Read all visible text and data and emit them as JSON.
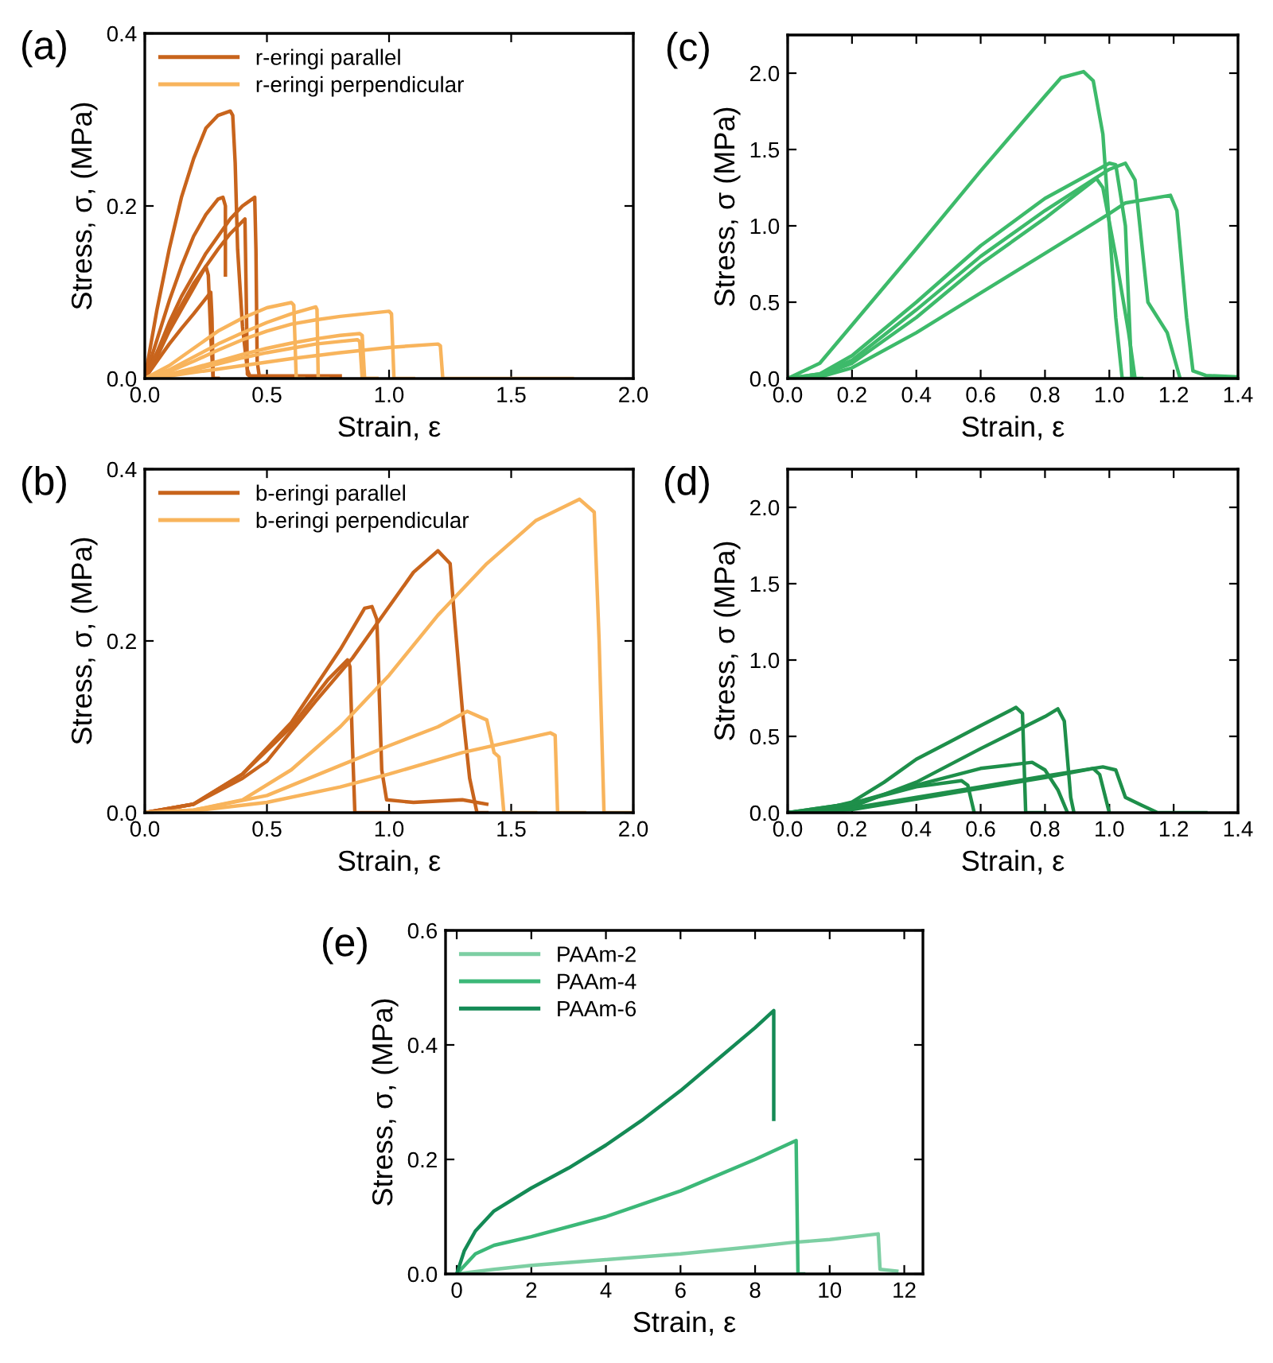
{
  "chart_data": [
    {
      "type": "line",
      "title": "(a)",
      "xlabel": "Strain, ε",
      "ylabel": "Stress, σ, (MPa)",
      "xlim": [
        0,
        2
      ],
      "ylim": [
        0,
        0.4
      ],
      "xticks": [
        {
          "value": 0,
          "label": "0.0"
        },
        0.5,
        {
          "value": 1,
          "label": "1.0"
        },
        1.5,
        {
          "value": 2,
          "label": "2.0"
        }
      ],
      "yticks": [
        {
          "value": 0,
          "label": "0.0"
        },
        0.2,
        0.4
      ],
      "grid": false,
      "legend": "top left",
      "series": [
        {
          "name": "r-eringi parallel",
          "color": "#c8641c",
          "x": [
            0,
            0.05,
            0.1,
            0.15,
            0.2,
            0.25,
            0.3,
            0.35,
            0.36,
            0.37,
            0.38,
            0.4,
            0.42,
            0.43,
            0.6,
            0.8
          ],
          "values": [
            0,
            0.08,
            0.15,
            0.21,
            0.255,
            0.29,
            0.305,
            0.31,
            0.305,
            0.25,
            0.15,
            0.06,
            0.01,
            0.003,
            0.003,
            0.003
          ]
        },
        {
          "color": "#c8641c",
          "x": [
            0,
            0.05,
            0.1,
            0.15,
            0.2,
            0.25,
            0.3,
            0.32,
            0.33,
            0.33
          ],
          "values": [
            0,
            0.045,
            0.09,
            0.13,
            0.165,
            0.19,
            0.208,
            0.21,
            0.2,
            0.12
          ]
        },
        {
          "color": "#c8641c",
          "x": [
            0,
            0.05,
            0.1,
            0.15,
            0.2,
            0.25,
            0.3,
            0.35,
            0.4,
            0.45,
            0.455,
            0.46,
            0.47,
            0.55
          ],
          "values": [
            0,
            0.03,
            0.065,
            0.095,
            0.12,
            0.145,
            0.165,
            0.185,
            0.2,
            0.21,
            0.15,
            0.02,
            0,
            0
          ]
        },
        {
          "color": "#c8641c",
          "x": [
            0,
            0.05,
            0.1,
            0.15,
            0.2,
            0.25,
            0.3,
            0.35,
            0.41,
            0.415,
            0.42,
            0.44
          ],
          "values": [
            0,
            0.025,
            0.055,
            0.08,
            0.105,
            0.13,
            0.15,
            0.168,
            0.185,
            0.1,
            0.005,
            0
          ]
        },
        {
          "color": "#c8641c",
          "x": [
            0,
            0.05,
            0.1,
            0.15,
            0.2,
            0.25,
            0.26,
            0.27,
            0.28,
            0.3
          ],
          "values": [
            0,
            0.03,
            0.06,
            0.085,
            0.11,
            0.13,
            0.12,
            0.05,
            0,
            0
          ]
        },
        {
          "color": "#c8641c",
          "x": [
            0,
            0.05,
            0.1,
            0.15,
            0.2,
            0.27,
            0.275,
            0.28,
            0.3
          ],
          "values": [
            0,
            0.02,
            0.04,
            0.058,
            0.075,
            0.1,
            0.07,
            0,
            0
          ]
        },
        {
          "name": "r-eringi perpendicular",
          "color": "#f8b45c",
          "x": [
            0,
            0.1,
            0.2,
            0.3,
            0.4,
            0.5,
            0.6,
            0.61,
            0.62,
            0.65
          ],
          "values": [
            0,
            0.015,
            0.035,
            0.055,
            0.07,
            0.082,
            0.088,
            0.085,
            0,
            0
          ]
        },
        {
          "color": "#f8b45c",
          "x": [
            0,
            0.1,
            0.2,
            0.3,
            0.4,
            0.5,
            0.6,
            0.7,
            0.705,
            0.71,
            0.75
          ],
          "values": [
            0,
            0.01,
            0.025,
            0.04,
            0.053,
            0.065,
            0.075,
            0.083,
            0.08,
            0,
            0
          ]
        },
        {
          "color": "#f8b45c",
          "x": [
            0,
            0.1,
            0.2,
            0.3,
            0.4,
            0.5,
            0.6,
            0.7,
            0.8,
            0.9,
            1.0,
            1.01,
            1.02,
            1.1
          ],
          "values": [
            0,
            0.008,
            0.02,
            0.033,
            0.045,
            0.055,
            0.063,
            0.068,
            0.072,
            0.075,
            0.078,
            0.075,
            0,
            0
          ]
        },
        {
          "color": "#f8b45c",
          "x": [
            0,
            0.1,
            0.2,
            0.3,
            0.4,
            0.5,
            0.6,
            0.7,
            0.8,
            0.88,
            0.89,
            0.9,
            0.95
          ],
          "values": [
            0,
            0.005,
            0.012,
            0.02,
            0.028,
            0.035,
            0.041,
            0.046,
            0.05,
            0.052,
            0.05,
            0,
            0
          ]
        },
        {
          "color": "#f8b45c",
          "x": [
            0,
            0.1,
            0.2,
            0.3,
            0.4,
            0.5,
            0.6,
            0.7,
            0.8,
            0.87,
            0.88,
            0.89,
            0.95
          ],
          "values": [
            0,
            0.004,
            0.01,
            0.017,
            0.024,
            0.03,
            0.035,
            0.04,
            0.043,
            0.045,
            0.043,
            0,
            0
          ]
        },
        {
          "color": "#f8b45c",
          "x": [
            0,
            0.1,
            0.2,
            0.4,
            0.6,
            0.8,
            1.0,
            1.2,
            1.21,
            1.22,
            1.4,
            1.75
          ],
          "values": [
            0,
            0.003,
            0.007,
            0.015,
            0.023,
            0.03,
            0.036,
            0.04,
            0.038,
            0,
            0,
            0
          ]
        }
      ]
    },
    {
      "type": "line",
      "title": "(b)",
      "xlabel": "Strain, ε",
      "ylabel": "Stress, σ, (MPa)",
      "xlim": [
        0,
        2
      ],
      "ylim": [
        0,
        0.4
      ],
      "xticks": [
        {
          "value": 0,
          "label": "0.0"
        },
        0.5,
        {
          "value": 1,
          "label": "1.0"
        },
        1.5,
        {
          "value": 2,
          "label": "2.0"
        }
      ],
      "yticks": [
        {
          "value": 0,
          "label": "0.0"
        },
        0.2,
        0.4
      ],
      "grid": false,
      "legend": "top left",
      "series": [
        {
          "name": "b-eringi parallel",
          "color": "#c8641c",
          "x": [
            0,
            0.2,
            0.4,
            0.6,
            0.75,
            0.83,
            0.84,
            0.85,
            0.86,
            1.0
          ],
          "values": [
            0,
            0.01,
            0.045,
            0.1,
            0.155,
            0.178,
            0.17,
            0.08,
            0,
            0
          ]
        },
        {
          "color": "#c8641c",
          "x": [
            0,
            0.2,
            0.4,
            0.6,
            0.8,
            0.9,
            0.93,
            0.95,
            0.97,
            0.99,
            1.1,
            1.3,
            1.4
          ],
          "values": [
            0,
            0.01,
            0.045,
            0.105,
            0.19,
            0.238,
            0.24,
            0.225,
            0.05,
            0.015,
            0.012,
            0.015,
            0.01
          ]
        },
        {
          "color": "#c8641c",
          "x": [
            0,
            0.2,
            0.4,
            0.5,
            0.7,
            0.85,
            1.0,
            1.1,
            1.2,
            1.25,
            1.27,
            1.3,
            1.33,
            1.36,
            1.4
          ],
          "values": [
            0,
            0.01,
            0.04,
            0.06,
            0.13,
            0.18,
            0.24,
            0.28,
            0.305,
            0.29,
            0.22,
            0.12,
            0.04,
            0,
            0
          ]
        },
        {
          "name": "b-eringi perpendicular",
          "color": "#f8b45c",
          "x": [
            0,
            0.2,
            0.4,
            0.6,
            0.8,
            1.0,
            1.2,
            1.4,
            1.6,
            1.78,
            1.84,
            1.86,
            1.88,
            2.0
          ],
          "values": [
            0,
            0.003,
            0.015,
            0.05,
            0.1,
            0.16,
            0.23,
            0.29,
            0.34,
            0.365,
            0.35,
            0.2,
            0,
            0
          ]
        },
        {
          "color": "#f8b45c",
          "x": [
            0,
            0.2,
            0.5,
            0.8,
            1.0,
            1.2,
            1.32,
            1.4,
            1.43,
            1.45,
            1.47,
            1.6
          ],
          "values": [
            0,
            0.003,
            0.02,
            0.055,
            0.078,
            0.1,
            0.118,
            0.108,
            0.07,
            0.065,
            0,
            0
          ]
        },
        {
          "color": "#f8b45c",
          "x": [
            0,
            0.2,
            0.5,
            0.8,
            1.0,
            1.3,
            1.66,
            1.68,
            1.69,
            1.8
          ],
          "values": [
            0,
            0.002,
            0.012,
            0.03,
            0.045,
            0.07,
            0.093,
            0.09,
            0,
            0
          ]
        }
      ]
    },
    {
      "type": "line",
      "title": "(c)",
      "xlabel": "Strain, ε",
      "ylabel": "Stress, σ (MPa)",
      "xlim": [
        0,
        1.4
      ],
      "ylim": [
        0,
        2.25
      ],
      "xticks": [
        {
          "value": 0,
          "label": "0.0"
        },
        0.2,
        0.4,
        0.6,
        0.8,
        {
          "value": 1,
          "label": "1.0"
        },
        1.2,
        1.4
      ],
      "yticks": [
        {
          "value": 0,
          "label": "0.0"
        },
        0.5,
        {
          "value": 1,
          "label": "1.0"
        },
        1.5,
        {
          "value": 2,
          "label": "2.0"
        }
      ],
      "grid": false,
      "series": [
        {
          "color": "#3dba6a",
          "x": [
            0,
            0.1,
            0.2,
            0.4,
            0.6,
            0.8,
            0.85,
            0.92,
            0.95,
            0.98,
            1.0,
            1.02,
            1.04,
            1.1
          ],
          "values": [
            0,
            0.1,
            0.35,
            0.85,
            1.36,
            1.85,
            1.97,
            2.01,
            1.95,
            1.6,
            1.0,
            0.4,
            0,
            0
          ]
        },
        {
          "color": "#3dba6a",
          "x": [
            0,
            0.1,
            0.2,
            0.4,
            0.6,
            0.8,
            1.0,
            1.02,
            1.05,
            1.07
          ],
          "values": [
            0,
            0.03,
            0.15,
            0.5,
            0.87,
            1.18,
            1.41,
            1.4,
            1.0,
            0
          ]
        },
        {
          "color": "#3dba6a",
          "x": [
            0,
            0.1,
            0.2,
            0.4,
            0.6,
            0.8,
            1.0,
            1.05,
            1.08,
            1.1,
            1.12,
            1.18,
            1.22
          ],
          "values": [
            0,
            0.03,
            0.12,
            0.45,
            0.8,
            1.1,
            1.37,
            1.41,
            1.3,
            0.9,
            0.5,
            0.3,
            0
          ]
        },
        {
          "color": "#3dba6a",
          "x": [
            0,
            0.1,
            0.2,
            0.4,
            0.6,
            0.8,
            0.96,
            0.98,
            1.02,
            1.06,
            1.08
          ],
          "values": [
            0,
            0.02,
            0.1,
            0.4,
            0.75,
            1.05,
            1.31,
            1.25,
            0.8,
            0.3,
            0
          ]
        },
        {
          "color": "#3dba6a",
          "x": [
            0,
            0.1,
            0.2,
            0.4,
            0.6,
            0.8,
            1.0,
            1.05,
            1.19,
            1.21,
            1.24,
            1.26,
            1.3,
            1.4
          ],
          "values": [
            0,
            0.01,
            0.07,
            0.3,
            0.56,
            0.82,
            1.08,
            1.15,
            1.2,
            1.1,
            0.4,
            0.05,
            0.02,
            0.01
          ]
        }
      ]
    },
    {
      "type": "line",
      "title": "(d)",
      "xlabel": "Strain, ε",
      "ylabel": "Stress, σ (MPa)",
      "xlim": [
        0,
        1.4
      ],
      "ylim": [
        0,
        2.25
      ],
      "xticks": [
        {
          "value": 0,
          "label": "0.0"
        },
        0.2,
        0.4,
        0.6,
        0.8,
        {
          "value": 1,
          "label": "1.0"
        },
        1.2,
        1.4
      ],
      "yticks": [
        {
          "value": 0,
          "label": "0.0"
        },
        0.5,
        {
          "value": 1,
          "label": "1.0"
        },
        1.5,
        {
          "value": 2,
          "label": "2.0"
        }
      ],
      "grid": false,
      "series": [
        {
          "color": "#1e8f4a",
          "x": [
            0,
            0.1,
            0.2,
            0.3,
            0.4,
            0.5,
            0.6,
            0.71,
            0.73,
            0.74,
            0.8
          ],
          "values": [
            0,
            0.02,
            0.07,
            0.2,
            0.35,
            0.46,
            0.57,
            0.69,
            0.65,
            0,
            0
          ]
        },
        {
          "color": "#1e8f4a",
          "x": [
            0,
            0.2,
            0.4,
            0.6,
            0.8,
            0.84,
            0.86,
            0.88,
            0.89
          ],
          "values": [
            0,
            0.04,
            0.2,
            0.42,
            0.63,
            0.68,
            0.6,
            0.1,
            0
          ]
        },
        {
          "color": "#1e8f4a",
          "x": [
            0,
            0.2,
            0.4,
            0.6,
            0.76,
            0.8,
            0.84,
            0.87
          ],
          "values": [
            0,
            0.06,
            0.18,
            0.29,
            0.33,
            0.28,
            0.15,
            0
          ]
        },
        {
          "color": "#1e8f4a",
          "x": [
            0,
            0.2,
            0.4,
            0.54,
            0.56,
            0.58
          ],
          "values": [
            0,
            0.06,
            0.17,
            0.21,
            0.18,
            0
          ]
        },
        {
          "color": "#1e8f4a",
          "x": [
            0,
            0.2,
            0.4,
            0.6,
            0.8,
            0.98,
            1.02,
            1.05,
            1.1,
            1.15,
            1.3
          ],
          "values": [
            0,
            0.03,
            0.1,
            0.17,
            0.24,
            0.3,
            0.28,
            0.1,
            0.05,
            0,
            0
          ]
        },
        {
          "color": "#1e8f4a",
          "x": [
            0,
            0.2,
            0.4,
            0.6,
            0.8,
            0.95,
            0.97,
            1.0
          ],
          "values": [
            0,
            0.02,
            0.09,
            0.16,
            0.23,
            0.29,
            0.25,
            0
          ]
        }
      ]
    },
    {
      "type": "line",
      "title": "(e)",
      "xlabel": "Strain, ε",
      "ylabel": "Stress, σ, (MPa)",
      "xlim": [
        -0.3,
        12.5
      ],
      "ylim": [
        0,
        0.6
      ],
      "xticks": [
        0,
        2,
        4,
        6,
        8,
        10,
        12
      ],
      "yticks": [
        {
          "value": 0,
          "label": "0.0"
        },
        0.2,
        0.4,
        0.6
      ],
      "grid": false,
      "legend": "top left",
      "series": [
        {
          "name": "PAAm-2",
          "color": "#7dcfa3",
          "x": [
            0,
            1,
            2,
            4,
            6,
            8,
            9,
            10,
            11.3,
            11.35,
            11.8
          ],
          "values": [
            0,
            0.008,
            0.015,
            0.025,
            0.035,
            0.048,
            0.055,
            0.06,
            0.07,
            0.008,
            0.005
          ]
        },
        {
          "name": "PAAm-4",
          "color": "#3cb878",
          "x": [
            0,
            0.5,
            1,
            2,
            4,
            6,
            8,
            9.1,
            9.15,
            9.3
          ],
          "values": [
            0,
            0.035,
            0.05,
            0.065,
            0.1,
            0.145,
            0.2,
            0.233,
            0,
            0
          ]
        },
        {
          "name": "PAAm-6",
          "color": "#148a55",
          "x": [
            0,
            0.2,
            0.5,
            1,
            2,
            3,
            4,
            5,
            6,
            7,
            8,
            8.5,
            8.5
          ],
          "values": [
            0,
            0.04,
            0.075,
            0.11,
            0.15,
            0.185,
            0.225,
            0.27,
            0.32,
            0.375,
            0.43,
            0.46,
            0.27
          ]
        }
      ]
    }
  ]
}
